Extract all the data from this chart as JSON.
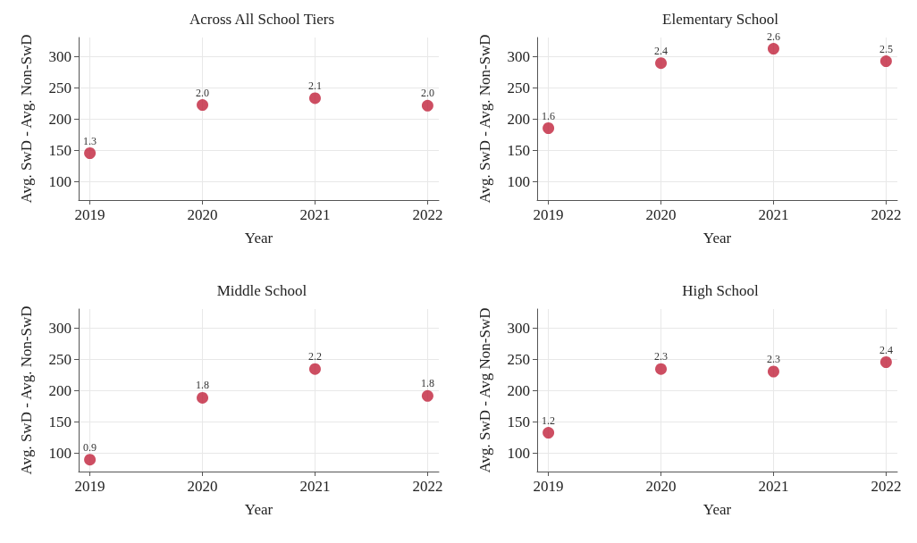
{
  "chart_data": [
    {
      "type": "scatter",
      "title": "Across All School Tiers",
      "xlabel": "Year",
      "ylabel": "Avg. SwD - Avg. Non-SwD",
      "x": [
        2019,
        2020,
        2021,
        2022
      ],
      "series": [
        {
          "color": "#c0223b",
          "values": [
            145,
            222,
            233,
            221
          ]
        }
      ],
      "annotations": [
        {
          "text": "1.3",
          "x": 2019,
          "y": 145
        },
        {
          "text": "2.0",
          "x": 2020,
          "y": 222
        },
        {
          "text": "2.1",
          "x": 2021,
          "y": 233
        },
        {
          "text": "2.0",
          "x": 2022,
          "y": 221
        }
      ],
      "xlim": [
        2018.9,
        2022.1
      ],
      "xticks": [
        2019,
        2020,
        2021,
        2022
      ],
      "ylim": [
        70,
        330
      ],
      "yticks": [
        100,
        150,
        200,
        250,
        300
      ],
      "grid": true,
      "marker": "circle"
    },
    {
      "type": "scatter",
      "title": "Elementary School",
      "xlabel": "Year",
      "ylabel": "Avg. SwD - Avg. Non-SwD",
      "x": [
        2019,
        2020,
        2021,
        2022
      ],
      "series": [
        {
          "color": "#c0223b",
          "values": [
            185,
            289,
            312,
            292
          ]
        }
      ],
      "annotations": [
        {
          "text": "1.6",
          "x": 2019,
          "y": 185
        },
        {
          "text": "2.4",
          "x": 2020,
          "y": 289
        },
        {
          "text": "2.6",
          "x": 2021,
          "y": 312
        },
        {
          "text": "2.5",
          "x": 2022,
          "y": 292
        }
      ],
      "xlim": [
        2018.9,
        2022.1
      ],
      "xticks": [
        2019,
        2020,
        2021,
        2022
      ],
      "ylim": [
        70,
        330
      ],
      "yticks": [
        100,
        150,
        200,
        250,
        300
      ],
      "grid": true,
      "marker": "circle"
    },
    {
      "type": "scatter",
      "title": "Middle School",
      "xlabel": "Year",
      "ylabel": "Avg. SwD - Avg. Non-SwD",
      "x": [
        2019,
        2020,
        2021,
        2022
      ],
      "series": [
        {
          "color": "#c0223b",
          "values": [
            89,
            188,
            234,
            191
          ]
        }
      ],
      "annotations": [
        {
          "text": "0.9",
          "x": 2019,
          "y": 89
        },
        {
          "text": "1.8",
          "x": 2020,
          "y": 188
        },
        {
          "text": "2.2",
          "x": 2021,
          "y": 234
        },
        {
          "text": "1.8",
          "x": 2022,
          "y": 191
        }
      ],
      "xlim": [
        2018.9,
        2022.1
      ],
      "xticks": [
        2019,
        2020,
        2021,
        2022
      ],
      "ylim": [
        70,
        330
      ],
      "yticks": [
        100,
        150,
        200,
        250,
        300
      ],
      "grid": true,
      "marker": "circle"
    },
    {
      "type": "scatter",
      "title": "High School",
      "xlabel": "Year",
      "ylabel": "Avg. SwD - Avg Non-SwD",
      "x": [
        2019,
        2020,
        2021,
        2022
      ],
      "series": [
        {
          "color": "#c0223b",
          "values": [
            132,
            234,
            230,
            245
          ]
        }
      ],
      "annotations": [
        {
          "text": "1.2",
          "x": 2019,
          "y": 132
        },
        {
          "text": "2.3",
          "x": 2020,
          "y": 234
        },
        {
          "text": "2.3",
          "x": 2021,
          "y": 230
        },
        {
          "text": "2.4",
          "x": 2022,
          "y": 245
        }
      ],
      "xlim": [
        2018.9,
        2022.1
      ],
      "xticks": [
        2019,
        2020,
        2021,
        2022
      ],
      "ylim": [
        70,
        330
      ],
      "yticks": [
        100,
        150,
        200,
        250,
        300
      ],
      "grid": true,
      "marker": "circle"
    }
  ]
}
